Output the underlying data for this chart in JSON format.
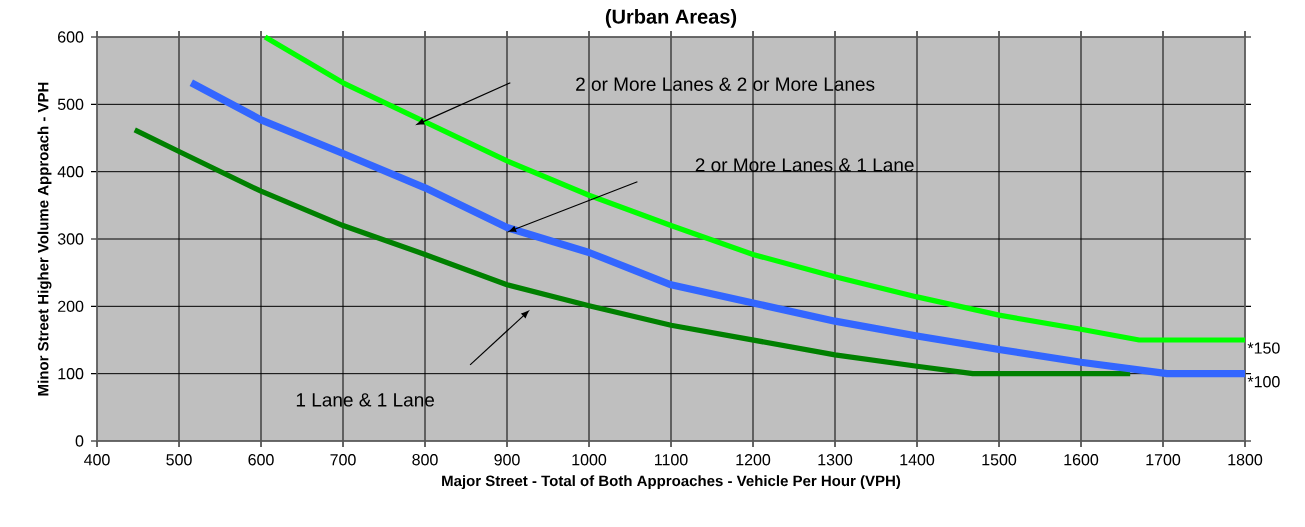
{
  "chart_data": {
    "type": "line",
    "title": "(Urban Areas)",
    "xlabel": "Major Street - Total of Both Approaches - Vehicle Per Hour (VPH)",
    "ylabel": "Minor Street Higher Volume Approach - VPH",
    "series": [
      {
        "color": "#008000",
        "x": [
          446,
          500,
          600,
          700,
          800,
          900,
          1000,
          1100,
          1200,
          1300,
          1400,
          1468,
          1660
        ],
        "values": [
          462,
          430,
          371,
          320,
          277,
          232,
          201,
          172,
          150,
          128,
          111,
          100,
          100
        ]
      },
      {
        "color": "#3366ff",
        "x": [
          515,
          600,
          700,
          800,
          900,
          1000,
          1100,
          1200,
          1300,
          1400,
          1500,
          1600,
          1705,
          1800
        ],
        "values": [
          532,
          477,
          427,
          376,
          317,
          280,
          232,
          205,
          178,
          156,
          136,
          117,
          100,
          100
        ]
      },
      {
        "color": "#00ff00",
        "x": [
          605,
          700,
          800,
          900,
          1000,
          1100,
          1200,
          1300,
          1400,
          1500,
          1600,
          1671,
          1800
        ],
        "values": [
          600,
          532,
          474,
          416,
          365,
          320,
          277,
          244,
          214,
          187,
          166,
          150,
          150
        ]
      }
    ],
    "annotations": [
      "1 Lane & 1 Lane",
      "2 or More Lanes & 1 Lane",
      "2 or More Lanes & 2 or More Lanes",
      {
        "text": "*150",
        "x": 1800,
        "y": 150
      },
      {
        "text": "*100",
        "x": 1800,
        "y": 100
      }
    ],
    "xlim": [
      400,
      1800
    ],
    "ylim": [
      0,
      600
    ],
    "xticks": [
      400,
      500,
      600,
      700,
      800,
      900,
      1000,
      1100,
      1200,
      1300,
      1400,
      1500,
      1600,
      1700,
      1800
    ],
    "yticks": [
      0,
      100,
      200,
      300,
      400,
      500,
      600
    ],
    "grid": true
  }
}
